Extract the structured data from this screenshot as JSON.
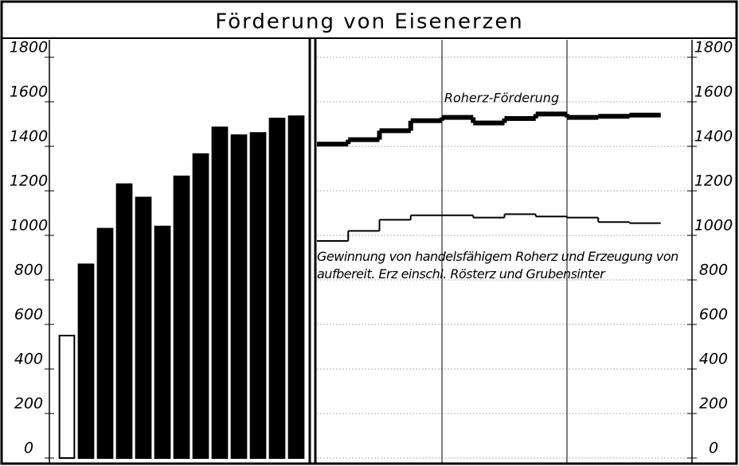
{
  "chart_data": [
    {
      "type": "bar",
      "title": "Förderung von Eisenerzen",
      "categories": [
        null,
        null,
        null,
        null,
        null,
        null,
        null,
        null,
        null,
        null,
        null,
        null,
        null
      ],
      "values": [
        550,
        870,
        1030,
        1230,
        1170,
        1040,
        1265,
        1365,
        1485,
        1450,
        1460,
        1525,
        1535
      ],
      "colors": [
        "#ffffff",
        "#000000",
        "#000000",
        "#000000",
        "#000000",
        "#000000",
        "#000000",
        "#000000",
        "#000000",
        "#000000",
        "#000000",
        "#000000",
        "#000000"
      ],
      "ylim": [
        0,
        1800
      ],
      "yticks": [
        0,
        200,
        400,
        600,
        800,
        1000,
        1200,
        1400,
        1600,
        1800
      ],
      "grid": false
    },
    {
      "type": "step",
      "categories": [
        null,
        null,
        null,
        null,
        null,
        null,
        null,
        null,
        null,
        null,
        null,
        null
      ],
      "series": [
        {
          "name": "Roherz-Förderung",
          "color": "#000000",
          "width": 6,
          "values": [
            1410,
            1430,
            1470,
            1515,
            1530,
            1505,
            1525,
            1545,
            1530,
            1535,
            1540,
            null
          ]
        },
        {
          "name": "Gewinnung von handelsfähigem Roherz und Erzeugung von aufbereit. Erz einschl. Rösterz und Grubensinter",
          "color": "#000000",
          "width": 2,
          "values": [
            975,
            1020,
            1070,
            1090,
            1090,
            1080,
            1095,
            1085,
            1080,
            1060,
            1055,
            null
          ]
        }
      ],
      "ylim": [
        0,
        1800
      ],
      "yticks": [
        0,
        200,
        400,
        600,
        800,
        1000,
        1200,
        1400,
        1600,
        1800
      ],
      "grid": true
    }
  ]
}
